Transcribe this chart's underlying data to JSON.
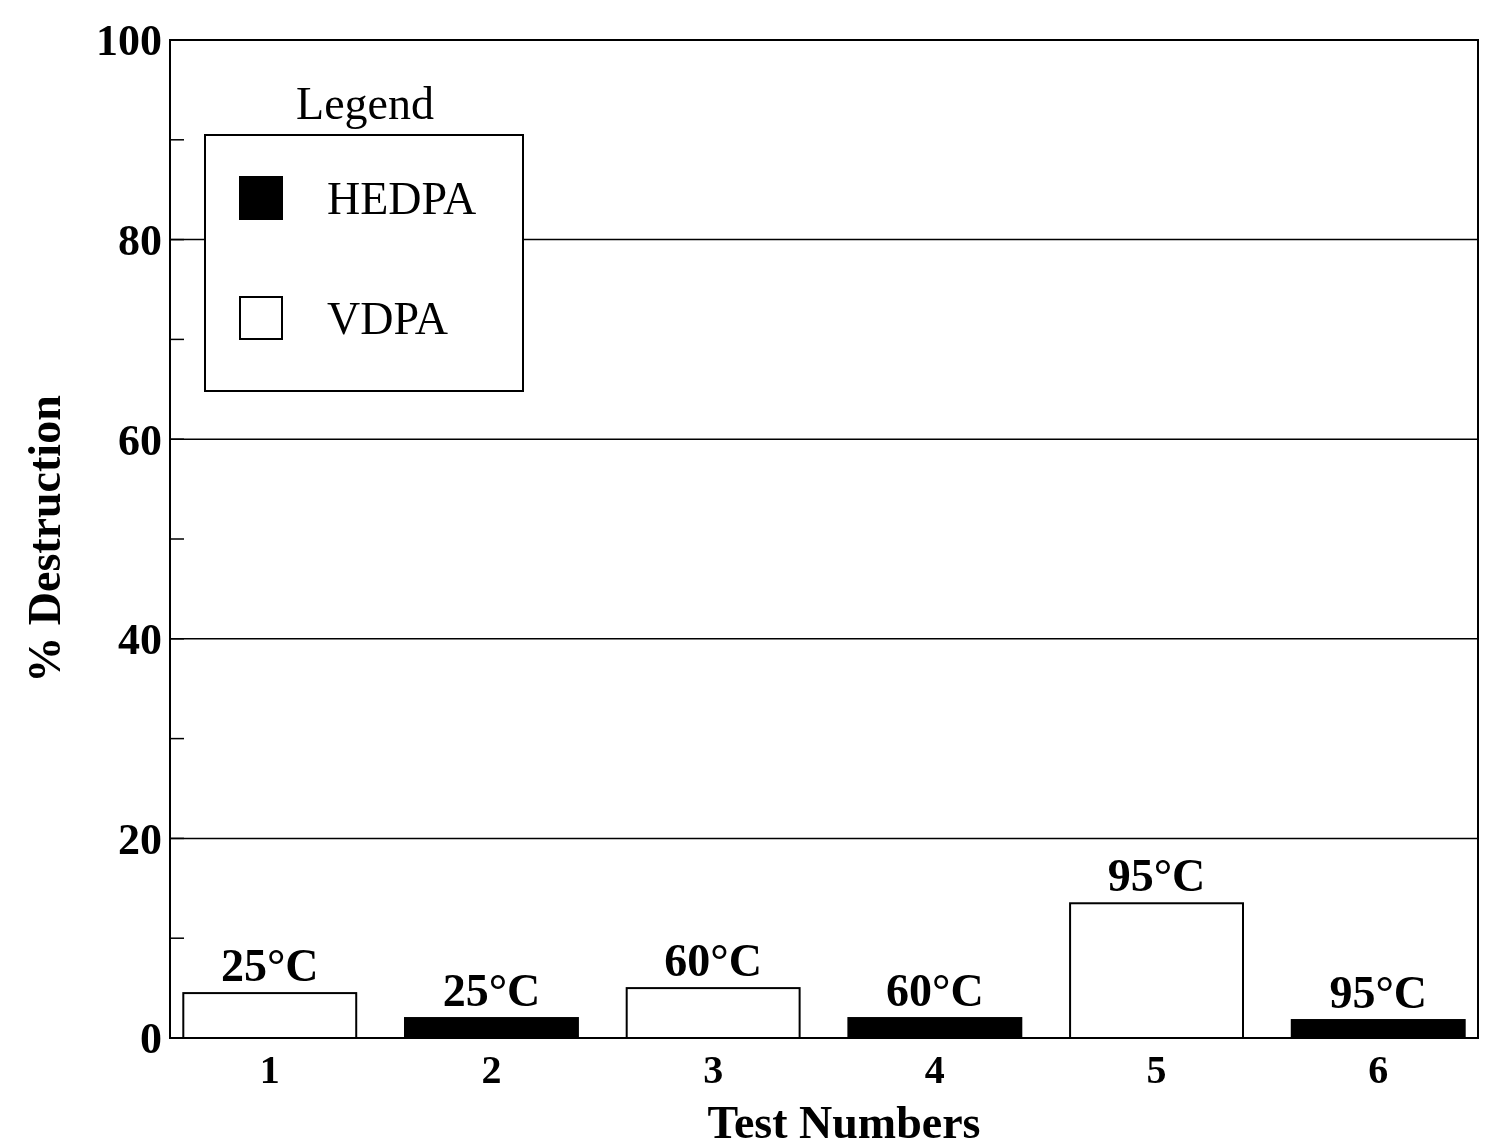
{
  "chart_data": {
    "type": "bar",
    "xlabel": "Test Numbers",
    "ylabel": "% Destruction",
    "legend_title": "Legend",
    "legend": "top left",
    "categories": [
      "1",
      "2",
      "3",
      "4",
      "5",
      "6"
    ],
    "series": [
      {
        "name": "HEDPA",
        "color": "#000000",
        "values": [
          null,
          2.0,
          null,
          2.0,
          null,
          1.8
        ]
      },
      {
        "name": "VDPA",
        "color": "#ffffff",
        "values": [
          4.5,
          null,
          5.0,
          null,
          13.5,
          null
        ]
      }
    ],
    "ylim": [
      0,
      100
    ],
    "yticks": [
      0,
      {
        "value": 10,
        "label": null
      },
      20,
      {
        "value": 30,
        "label": null
      },
      40,
      {
        "value": 50,
        "label": null
      },
      60,
      {
        "value": 70,
        "label": null
      },
      80,
      {
        "value": 90,
        "label": null
      },
      100
    ],
    "grid": "y",
    "annotations": [
      {
        "text": "25°C",
        "x": "1",
        "y": 4.5
      },
      {
        "text": "25°C",
        "x": "2",
        "y": 2.0
      },
      {
        "text": "60°C",
        "x": "3",
        "y": 5.0
      },
      {
        "text": "60°C",
        "x": "4",
        "y": 2.0
      },
      {
        "text": "95°C",
        "x": "5",
        "y": 13.5
      },
      {
        "text": "95°C",
        "x": "6",
        "y": 1.8
      }
    ]
  }
}
